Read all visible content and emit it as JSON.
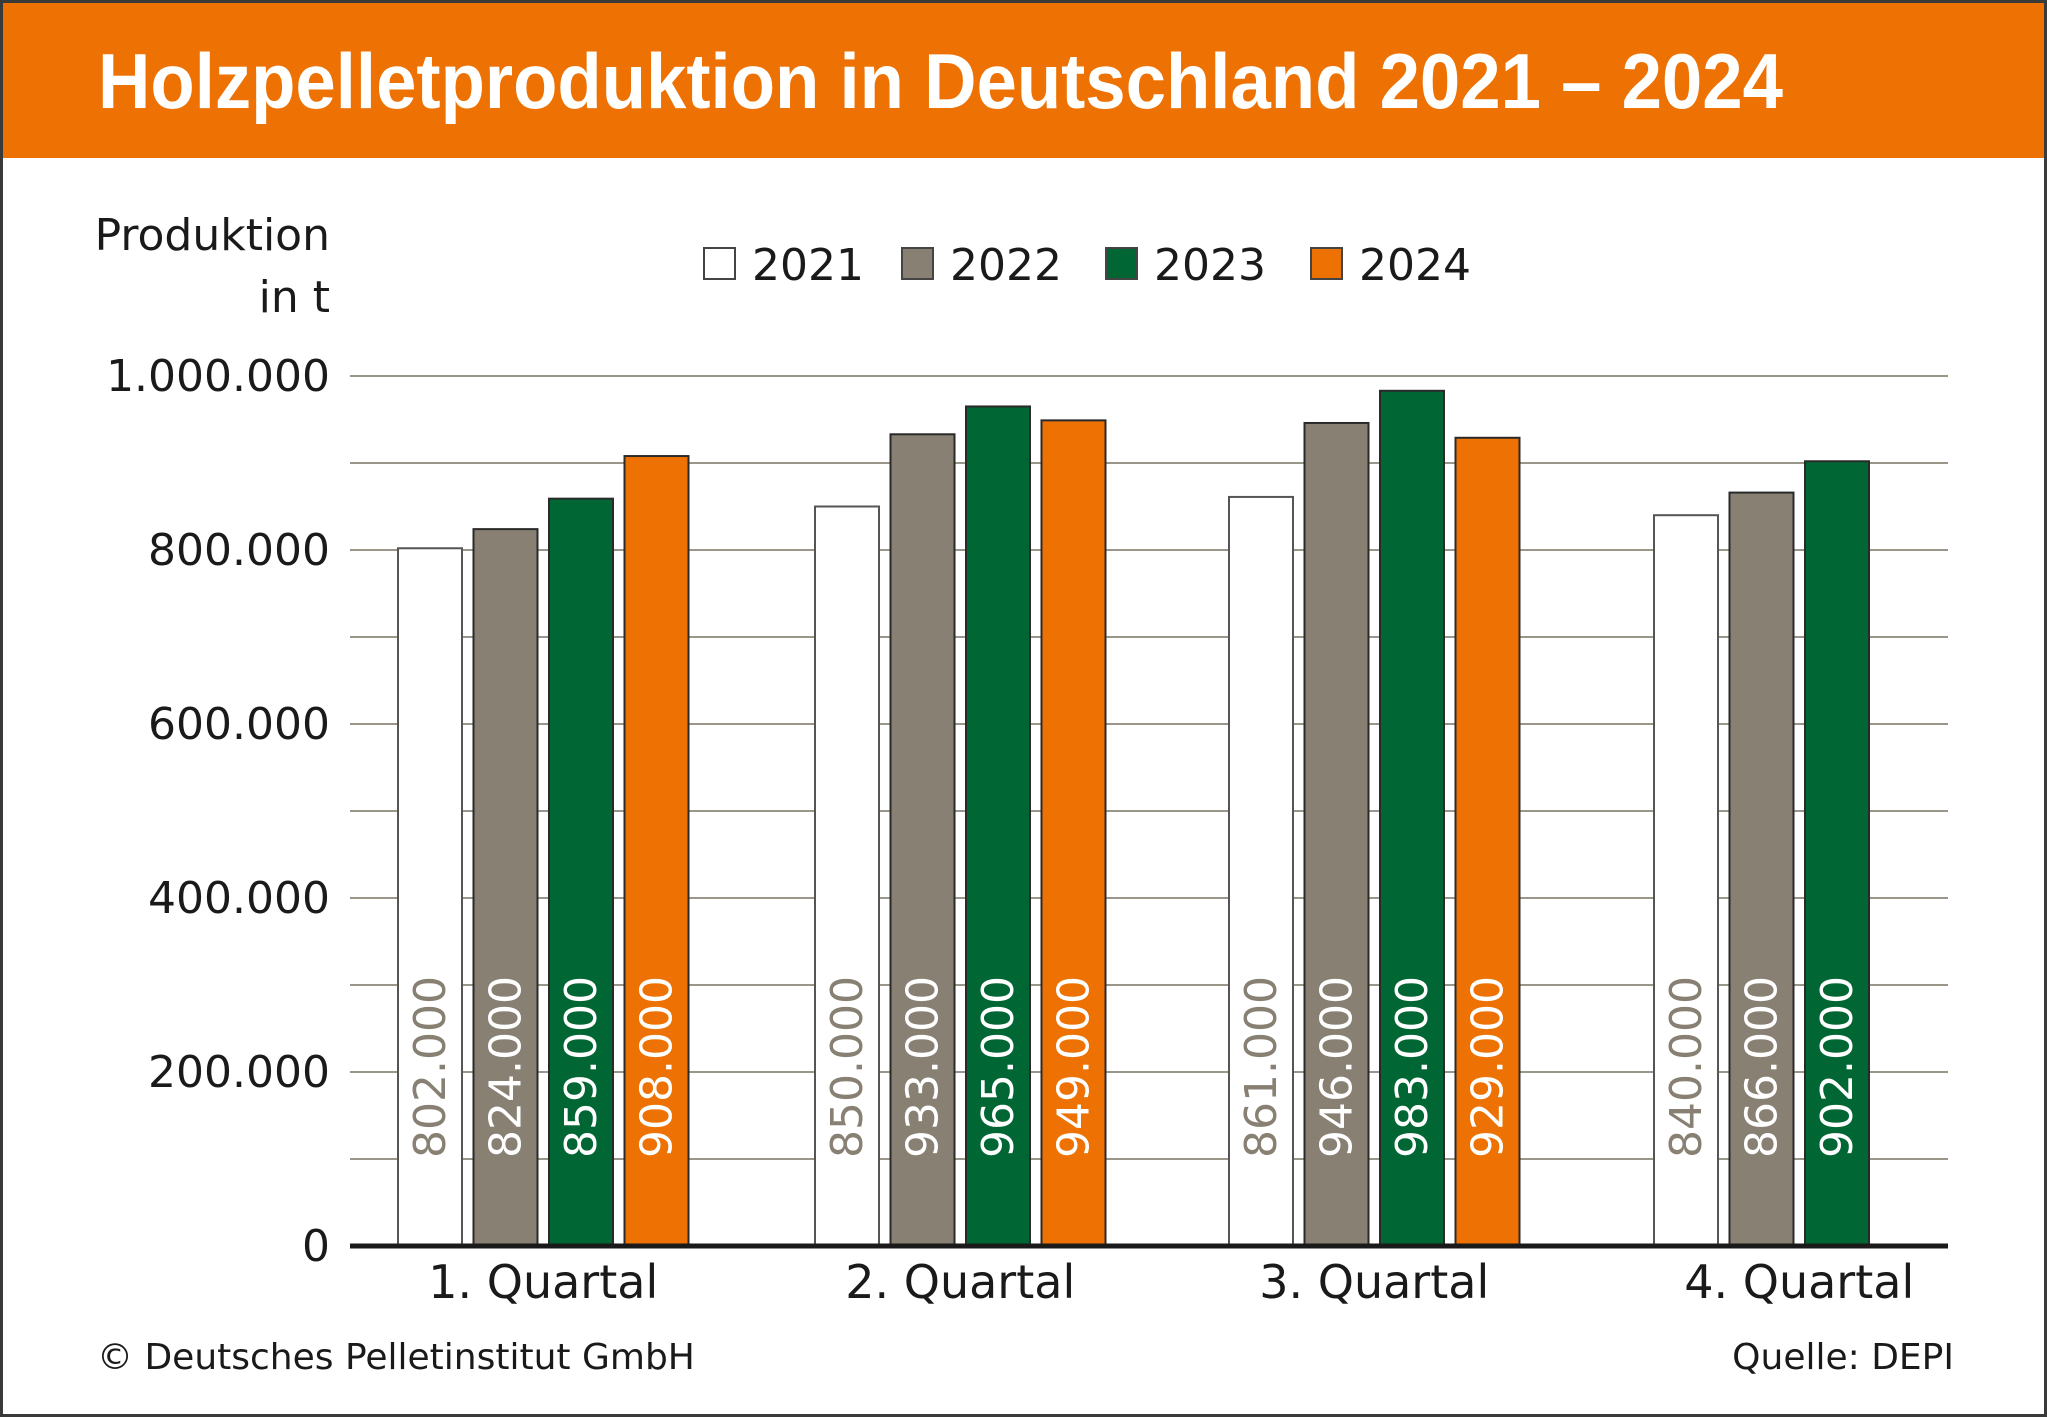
{
  "title": "Holzpelletproduktion in Deutschland 2021 – 2024",
  "footer": {
    "copyright": "© Deutsches Pelletinstitut GmbH",
    "source": "Quelle: DEPI"
  },
  "colors": {
    "title_bar": "#ED7203",
    "2021": "#FFFFFF",
    "2022": "#878073",
    "2023": "#006633",
    "2024": "#ED7203",
    "gridline": "#9A978A",
    "label_on_white": "#878073",
    "label_on_color": "#FFFFFF"
  },
  "chart_data": {
    "type": "bar",
    "title": "Holzpelletproduktion in Deutschland 2021 – 2024",
    "xlabel": "",
    "ylabel": "Produktion in t",
    "ylabel_lines": [
      "Produktion",
      "in t"
    ],
    "categories": [
      "1. Quartal",
      "2. Quartal",
      "3. Quartal",
      "4. Quartal"
    ],
    "series": [
      {
        "name": "2021",
        "values": [
          802000,
          850000,
          861000,
          840000
        ],
        "labels": [
          "802.000",
          "850.000",
          "861.000",
          "840.000"
        ]
      },
      {
        "name": "2022",
        "values": [
          824000,
          933000,
          946000,
          866000
        ],
        "labels": [
          "824.000",
          "933.000",
          "946.000",
          "866.000"
        ]
      },
      {
        "name": "2023",
        "values": [
          859000,
          965000,
          983000,
          902000
        ],
        "labels": [
          "859.000",
          "965.000",
          "983.000",
          "902.000"
        ]
      },
      {
        "name": "2024",
        "values": [
          908000,
          949000,
          929000,
          null
        ],
        "labels": [
          "908.000",
          "949.000",
          "929.000",
          null
        ]
      }
    ],
    "ylim": [
      0,
      1000000
    ],
    "yticks": [
      0,
      200000,
      400000,
      600000,
      800000,
      1000000
    ],
    "ytick_labels": [
      "0",
      "200.000",
      "400.000",
      "600.000",
      "800.000",
      "1.000.000"
    ],
    "minor_gridlines_step": 100000,
    "grid": true,
    "legend": {
      "placement": "top-center",
      "entries": [
        "2021",
        "2022",
        "2023",
        "2024"
      ]
    }
  }
}
